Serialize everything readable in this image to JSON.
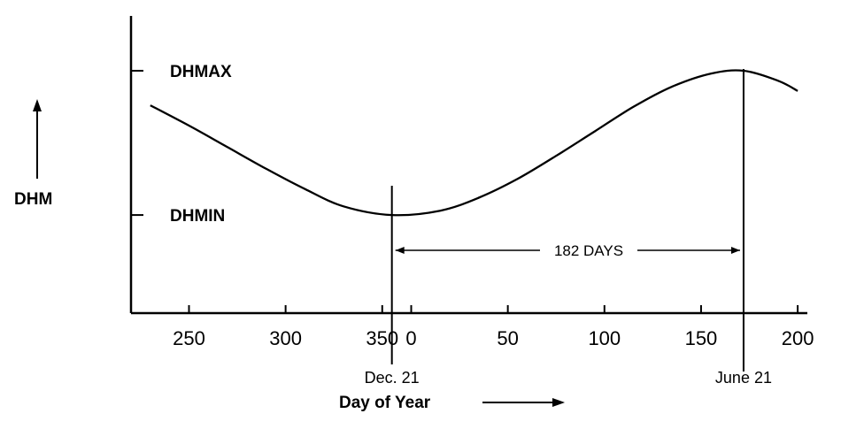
{
  "chart_data": {
    "type": "line",
    "title": "",
    "ylabel": "DHM",
    "xlabel": "Day of Year",
    "x_tick_labels": [
      "250",
      "300",
      "350",
      "0",
      "50",
      "100",
      "150",
      "200"
    ],
    "x_ticks_continuous_day": [
      250,
      300,
      350,
      365,
      415,
      465,
      515,
      565
    ],
    "xlim_continuous_day": [
      220,
      570
    ],
    "y_levels": [
      {
        "label": "DHMAX",
        "value": 1
      },
      {
        "label": "DHMIN",
        "value": 0
      }
    ],
    "ylim": [
      -0.68,
      1.38
    ],
    "series": [
      {
        "x_continuous_day": [
          230,
          250,
          270,
          290,
          310,
          330,
          355,
          380,
          400,
          420,
          440,
          460,
          480,
          500,
          520,
          537,
          555,
          565
        ],
        "values": [
          0.76,
          0.62,
          0.47,
          0.32,
          0.18,
          0.06,
          0.0,
          0.03,
          0.12,
          0.25,
          0.41,
          0.58,
          0.75,
          0.89,
          0.98,
          1.0,
          0.93,
          0.86
        ]
      }
    ],
    "markers": [
      {
        "label": "Dec. 21",
        "x_continuous_day": 355
      },
      {
        "label": "June 21",
        "x_continuous_day": 537
      }
    ],
    "annotation": {
      "text": "182 DAYS",
      "from_day": 355,
      "to_day": 537
    }
  }
}
